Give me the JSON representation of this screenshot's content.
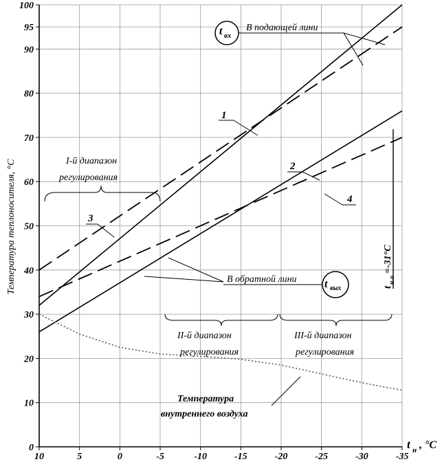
{
  "chart_data": {
    "type": "line",
    "ylabel": "Температура теплоносителя, °С",
    "xlabel_main": "t",
    "xlabel_sub": "н",
    "xlabel_unit": ", °С",
    "xlim": [
      10,
      -35
    ],
    "ylim": [
      0,
      100
    ],
    "x_ticks": [
      10,
      5,
      0,
      -5,
      -10,
      -15,
      -20,
      -25,
      -30,
      -35
    ],
    "x_tick_labels": [
      "10",
      "5",
      "0",
      "-5",
      "-10",
      "-15",
      "-20",
      "-25",
      "-30",
      "-35"
    ],
    "y_ticks": [
      0,
      10,
      20,
      30,
      40,
      50,
      60,
      70,
      80,
      90,
      95,
      100
    ],
    "y_tick_labels": [
      "0",
      "10",
      "20",
      "30",
      "40",
      "50",
      "60",
      "70",
      "80",
      "90",
      "95",
      "100"
    ],
    "series": [
      {
        "style": "solid",
        "x": [
          10,
          -35
        ],
        "y": [
          32,
          100
        ]
      },
      {
        "style": "dashed",
        "x": [
          10,
          -35
        ],
        "y": [
          40,
          95
        ]
      },
      {
        "style": "solid",
        "x": [
          10,
          -35
        ],
        "y": [
          26,
          76
        ]
      },
      {
        "style": "dashed",
        "x": [
          10,
          -35
        ],
        "y": [
          34,
          70
        ]
      },
      {
        "style": "dotted",
        "x": [
          10,
          5,
          0,
          -5,
          -10,
          -15,
          -20,
          -25,
          -30,
          -35
        ],
        "y": [
          30,
          25.5,
          22.5,
          21,
          20.5,
          19.8,
          18.5,
          16.5,
          14.5,
          12.8
        ]
      }
    ],
    "annotations": {
      "t_in_main": "t",
      "t_in_sub": "вх",
      "supply_line": "В подающей лини",
      "return_line": "В обратной лини",
      "t_out_main": "t",
      "t_out_sub": "вых",
      "label_1": "1",
      "label_2": "2",
      "label_3": "3",
      "label_4": "4",
      "range1_line1": "I-й диапазон",
      "range1_line2": "регулирования",
      "range2_line1": "II-й диапазон",
      "range2_line2": "регулирования",
      "range3_line1": "III-й диапазон",
      "range3_line2": "регулирования",
      "inner_air_line1": "Температура",
      "inner_air_line2": "внутреннего воздуха",
      "tno_main": "t",
      "tno_sub": "н.о",
      "tno_value": "=-31°С"
    }
  }
}
